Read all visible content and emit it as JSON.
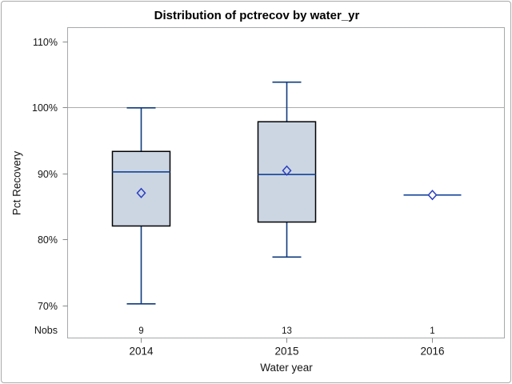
{
  "chart_data": {
    "type": "boxplot",
    "title": "Distribution of pctrecov by water_yr",
    "xlabel": "Water year",
    "ylabel": "Pct Recovery",
    "nobs_label": "Nobs",
    "categories": [
      "2014",
      "2015",
      "2016"
    ],
    "nobs": [
      "9",
      "13",
      "1"
    ],
    "y_ticks": [
      {
        "label": "110%",
        "value": 110
      },
      {
        "label": "100%",
        "value": 100
      },
      {
        "label": "90%",
        "value": 90
      },
      {
        "label": "80%",
        "value": 80
      },
      {
        "label": "70%",
        "value": 70
      }
    ],
    "y_axis_range": [
      65,
      112
    ],
    "reference_line_value": 100,
    "grid": "off",
    "legend": "none",
    "series": [
      {
        "category": "2014",
        "n": 9,
        "min": 70.2,
        "q1": 82.0,
        "median": 90.2,
        "q3": 93.3,
        "max": 99.9,
        "mean": 87.0
      },
      {
        "category": "2015",
        "n": 13,
        "min": 77.3,
        "q1": 82.6,
        "median": 89.8,
        "q3": 97.8,
        "max": 103.8,
        "mean": 90.4
      },
      {
        "category": "2016",
        "n": 1,
        "min": 86.7,
        "q1": 86.7,
        "median": 86.7,
        "q3": 86.7,
        "max": 86.7,
        "mean": 86.7
      }
    ],
    "colors": {
      "box_fill": "#ccd6e3",
      "box_border": "#000000",
      "median_line": "#1f4e9e",
      "whisker": "#0e3a7c",
      "mean_marker": "#2a3fc0",
      "reference_line": "#adadad",
      "axis_frame": "#a6a8ab",
      "tick": "#87898c",
      "text": "#141414"
    }
  }
}
